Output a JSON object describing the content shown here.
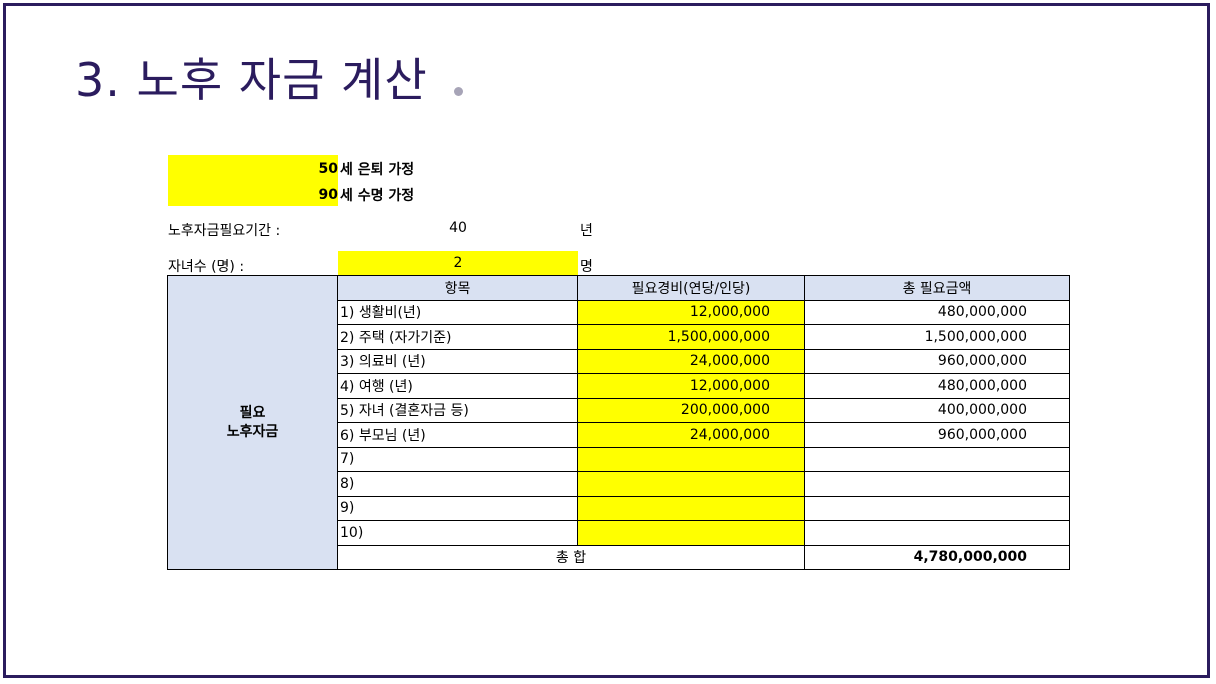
{
  "title": "3. 노후 자금 계산",
  "assumptions": {
    "retire_age": "50",
    "retire_text": "세 은퇴 가정",
    "life_age": "90",
    "life_text": "세 수명 가정"
  },
  "info": {
    "period_label": "노후자금필요기간 :",
    "period_value": "40",
    "period_unit": "년",
    "children_label": "자녀수 (명) :",
    "children_value": "2",
    "children_unit": "명"
  },
  "table": {
    "category_line1": "필요",
    "category_line2": "노후자금",
    "headers": [
      "항목",
      "필요경비(연당/인당)",
      "총 필요금액"
    ],
    "rows": [
      {
        "item": "1) 생활비(년)",
        "cost": "12,000,000",
        "total": "480,000,000"
      },
      {
        "item": "2) 주택 (자가기준)",
        "cost": "1,500,000,000",
        "total": "1,500,000,000"
      },
      {
        "item": "3) 의료비 (년)",
        "cost": "24,000,000",
        "total": "960,000,000"
      },
      {
        "item": "4) 여행 (년)",
        "cost": "12,000,000",
        "total": "480,000,000"
      },
      {
        "item": "5) 자녀 (결혼자금 등)",
        "cost": "200,000,000",
        "total": "400,000,000"
      },
      {
        "item": "6) 부모님 (년)",
        "cost": "24,000,000",
        "total": "960,000,000"
      },
      {
        "item": "7)",
        "cost": "",
        "total": ""
      },
      {
        "item": "8)",
        "cost": "",
        "total": ""
      },
      {
        "item": "9)",
        "cost": "",
        "total": ""
      },
      {
        "item": "10)",
        "cost": "",
        "total": ""
      }
    ],
    "sum_label": "총 합",
    "sum_value": "4,780,000,000"
  },
  "colors": {
    "title": "#2b1c5e",
    "highlight": "#ffff00",
    "header_fill": "#d9e1f2"
  }
}
